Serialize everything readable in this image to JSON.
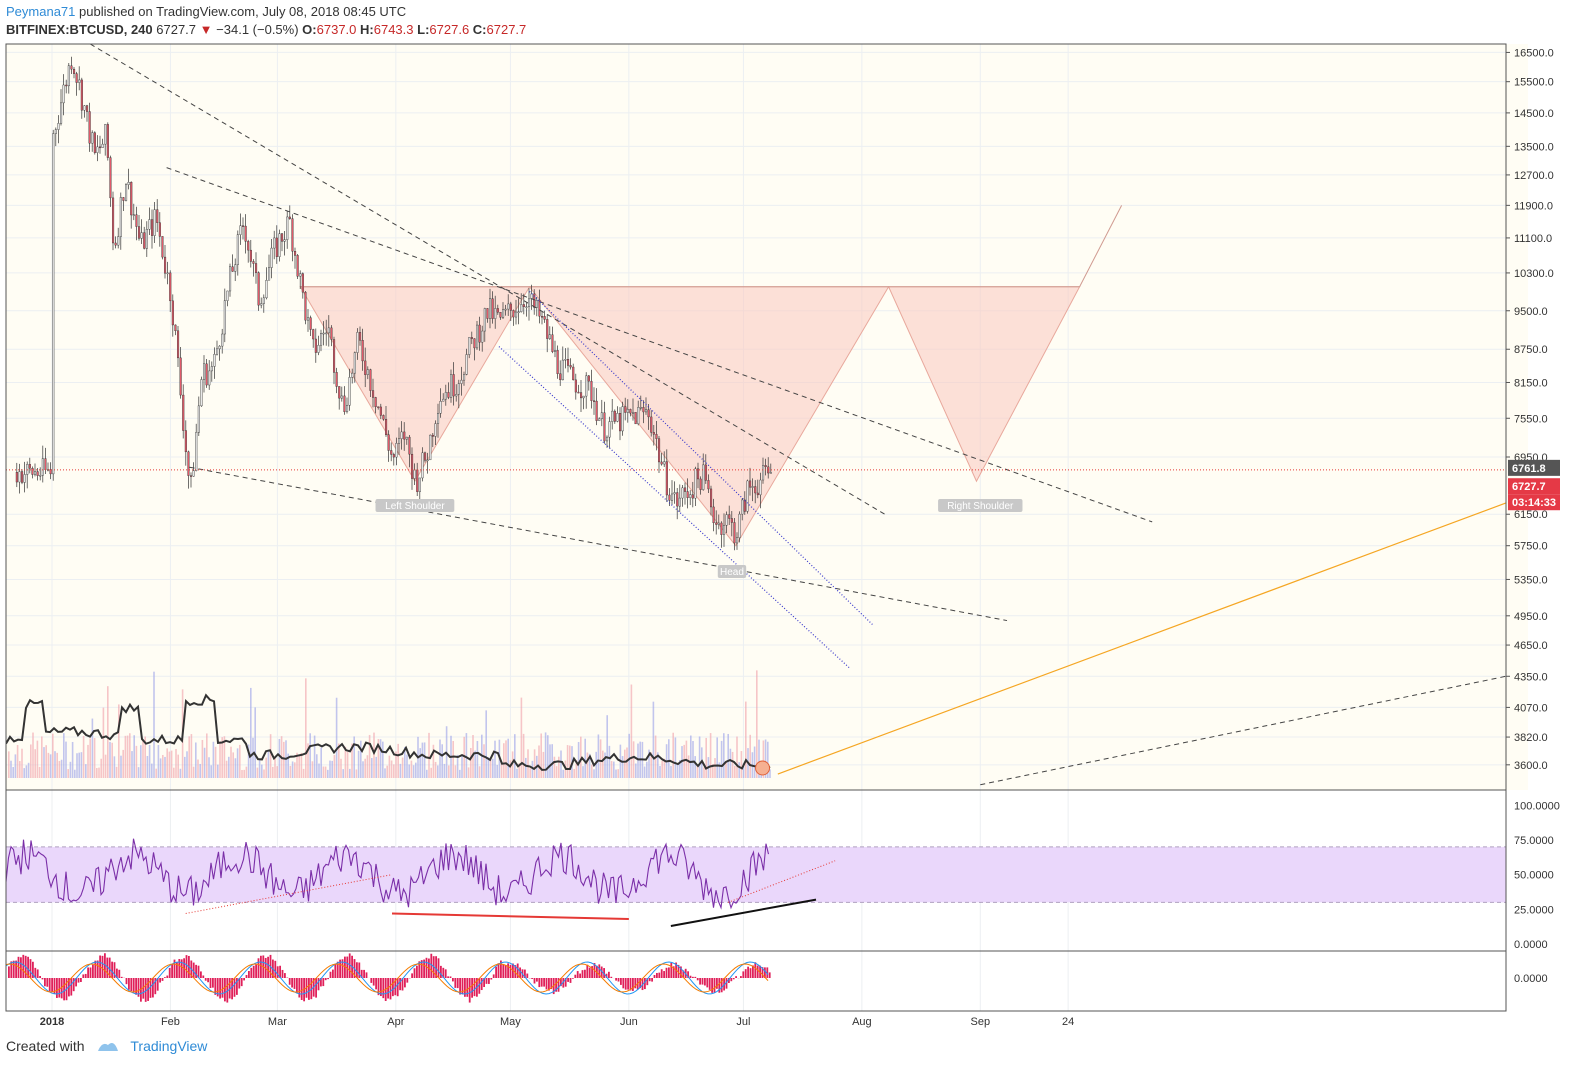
{
  "header": {
    "author": "Peymana71",
    "published": " published on TradingView.com, July 08, 2018 08:45 UTC",
    "symbol": "BITFINEX:BTCUSD, 240",
    "last": "6727.7",
    "change": "−34.1 (−0.5%)",
    "o_label": "O:",
    "o": "6737.0",
    "h_label": "H:",
    "h": "6743.3",
    "l_label": "L:",
    "l": "6727.6",
    "c_label": "C:",
    "c": "6727.7"
  },
  "footer": {
    "created": "Created with",
    "brand": "TradingView"
  },
  "colors": {
    "up": "#c8c8c8",
    "down": "#e05a6a",
    "pattern": "#f9c9c0",
    "rsi": "#7b2fa8",
    "rsi_band": "#ead7fb",
    "orange": "#f5a623",
    "blue_dot": "#3b3bcc"
  },
  "chart_data": {
    "type": "candlestick",
    "title": "BITFINEX:BTCUSD, 240",
    "price_axis": {
      "ticks": [
        "16500.0",
        "15500.0",
        "14500.0",
        "13500.0",
        "12700.0",
        "11900.0",
        "11100.0",
        "10300.0",
        "9500.0",
        "8750.0",
        "8150.0",
        "7550.0",
        "6950.0",
        "6150.0",
        "5750.0",
        "5350.0",
        "4950.0",
        "4650.0",
        "4350.0",
        "4070.0",
        "3820.0",
        "3600.0"
      ],
      "scale": "log",
      "ylim": [
        3500,
        16800
      ]
    },
    "x_axis": {
      "ticks": [
        "2018",
        "Feb",
        "Mar",
        "Apr",
        "May",
        "Jun",
        "Jul",
        "Aug",
        "Sep",
        "24"
      ]
    },
    "price_labels": {
      "marker": "6761.8",
      "last": "6727.7",
      "countdown": "03:14:33"
    },
    "annotations": [
      "Left Shoulder",
      "Head",
      "Right Shoulder"
    ],
    "price_path": [
      [
        "2018-01-01",
        13800
      ],
      [
        "2018-01-06",
        16400
      ],
      [
        "2018-01-09",
        14800
      ],
      [
        "2018-01-12",
        13200
      ],
      [
        "2018-01-15",
        13800
      ],
      [
        "2018-01-17",
        10800
      ],
      [
        "2018-01-20",
        12700
      ],
      [
        "2018-01-24",
        10900
      ],
      [
        "2018-01-28",
        11600
      ],
      [
        "2018-02-01",
        9800
      ],
      [
        "2018-02-03",
        8300
      ],
      [
        "2018-02-06",
        6400
      ],
      [
        "2018-02-09",
        8300
      ],
      [
        "2018-02-12",
        8400
      ],
      [
        "2018-02-16",
        10000
      ],
      [
        "2018-02-20",
        11500
      ],
      [
        "2018-02-24",
        9700
      ],
      [
        "2018-02-28",
        10800
      ],
      [
        "2018-03-04",
        11500
      ],
      [
        "2018-03-07",
        10000
      ],
      [
        "2018-03-10",
        8700
      ],
      [
        "2018-03-14",
        9200
      ],
      [
        "2018-03-18",
        7700
      ],
      [
        "2018-03-22",
        8900
      ],
      [
        "2018-03-27",
        7800
      ],
      [
        "2018-03-31",
        6900
      ],
      [
        "2018-04-03",
        7300
      ],
      [
        "2018-04-06",
        6600
      ],
      [
        "2018-04-09",
        7000
      ],
      [
        "2018-04-12",
        7900
      ],
      [
        "2018-04-17",
        8200
      ],
      [
        "2018-04-21",
        8900
      ],
      [
        "2018-04-25",
        9500
      ],
      [
        "2018-04-28",
        9300
      ],
      [
        "2018-05-05",
        9800
      ],
      [
        "2018-05-09",
        9300
      ],
      [
        "2018-05-13",
        8500
      ],
      [
        "2018-05-17",
        8200
      ],
      [
        "2018-05-22",
        8000
      ],
      [
        "2018-05-25",
        7400
      ],
      [
        "2018-05-29",
        7500
      ],
      [
        "2018-06-02",
        7600
      ],
      [
        "2018-06-06",
        7650
      ],
      [
        "2018-06-10",
        6700
      ],
      [
        "2018-06-13",
        6300
      ],
      [
        "2018-06-17",
        6500
      ],
      [
        "2018-06-20",
        6700
      ],
      [
        "2018-06-24",
        6000
      ],
      [
        "2018-06-26",
        6100
      ],
      [
        "2018-06-29",
        5900
      ],
      [
        "2018-07-02",
        6500
      ],
      [
        "2018-07-05",
        6600
      ],
      [
        "2018-07-08",
        6728
      ]
    ],
    "rsi": {
      "ticks": [
        "100.0000",
        "75.0000",
        "50.0000",
        "25.0000",
        "0.0000"
      ],
      "band": [
        30,
        70
      ]
    },
    "macd": {
      "ticks": [
        "0.0000"
      ]
    }
  }
}
